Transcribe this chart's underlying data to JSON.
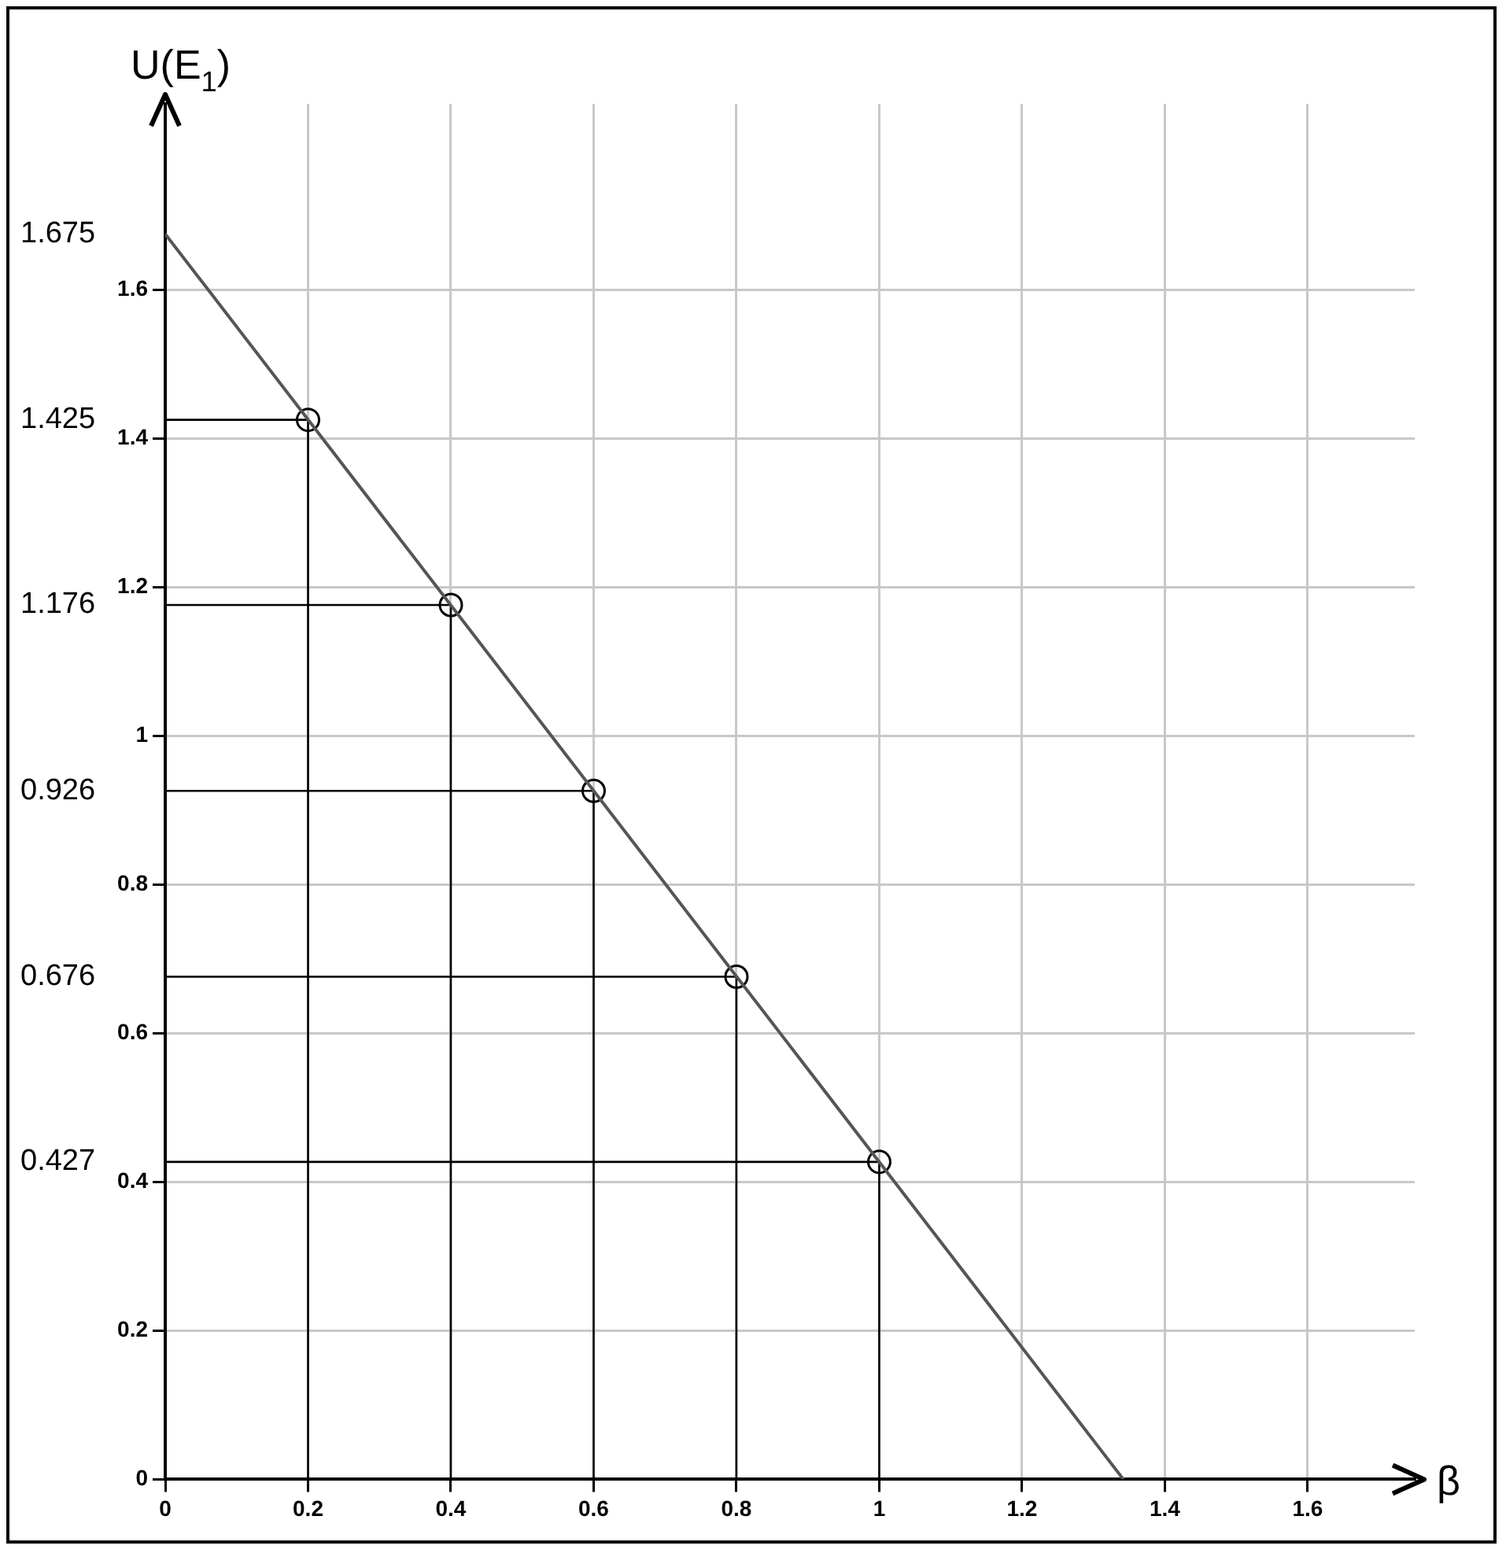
{
  "chart_data": {
    "type": "line",
    "xlabel": "β",
    "ylabel": "U(E$_{1}$)",
    "xlim": [
      0,
      1.75
    ],
    "xticks": [
      0,
      0.2,
      0.4,
      0.6,
      0.8,
      1,
      1.2,
      1.4,
      1.6
    ],
    "ylim": [
      0,
      1.85
    ],
    "yticks": [
      0,
      0.2,
      0.4,
      0.6,
      0.8,
      1,
      1.2,
      1.4,
      1.6
    ],
    "y2lim": [
      0,
      1.85
    ],
    "y2ticks": [
      0.427,
      0.676,
      0.926,
      1.176,
      1.425,
      1.675
    ],
    "grid": true,
    "legend": false,
    "series": [
      {
        "type": "line",
        "color": "#555555",
        "marker": "none",
        "x": [
          0,
          1.342
        ],
        "values": [
          1.675,
          0
        ]
      },
      {
        "type": "line",
        "color": "#000000",
        "marker": "none",
        "x": [
          0,
          0.2,
          0.2
        ],
        "values": [
          1.425,
          1.425,
          0
        ]
      },
      {
        "type": "line",
        "color": "#000000",
        "marker": "none",
        "x": [
          0,
          0.4,
          0.4
        ],
        "values": [
          1.176,
          1.176,
          0
        ]
      },
      {
        "type": "line",
        "color": "#000000",
        "marker": "none",
        "x": [
          0,
          0.6,
          0.6
        ],
        "values": [
          0.926,
          0.926,
          0
        ]
      },
      {
        "type": "line",
        "color": "#000000",
        "marker": "none",
        "x": [
          0,
          0.8,
          0.8
        ],
        "values": [
          0.676,
          0.676,
          0
        ]
      },
      {
        "type": "line",
        "color": "#000000",
        "marker": "none",
        "x": [
          0,
          1,
          1
        ],
        "values": [
          0.427,
          0.427,
          0
        ]
      },
      {
        "type": "scatter",
        "color": "#000000",
        "marker": "circle",
        "x": [
          0.2,
          0.4,
          0.6,
          0.8,
          1
        ],
        "values": [
          1.425,
          1.176,
          0.926,
          0.676,
          0.427
        ]
      }
    ]
  }
}
